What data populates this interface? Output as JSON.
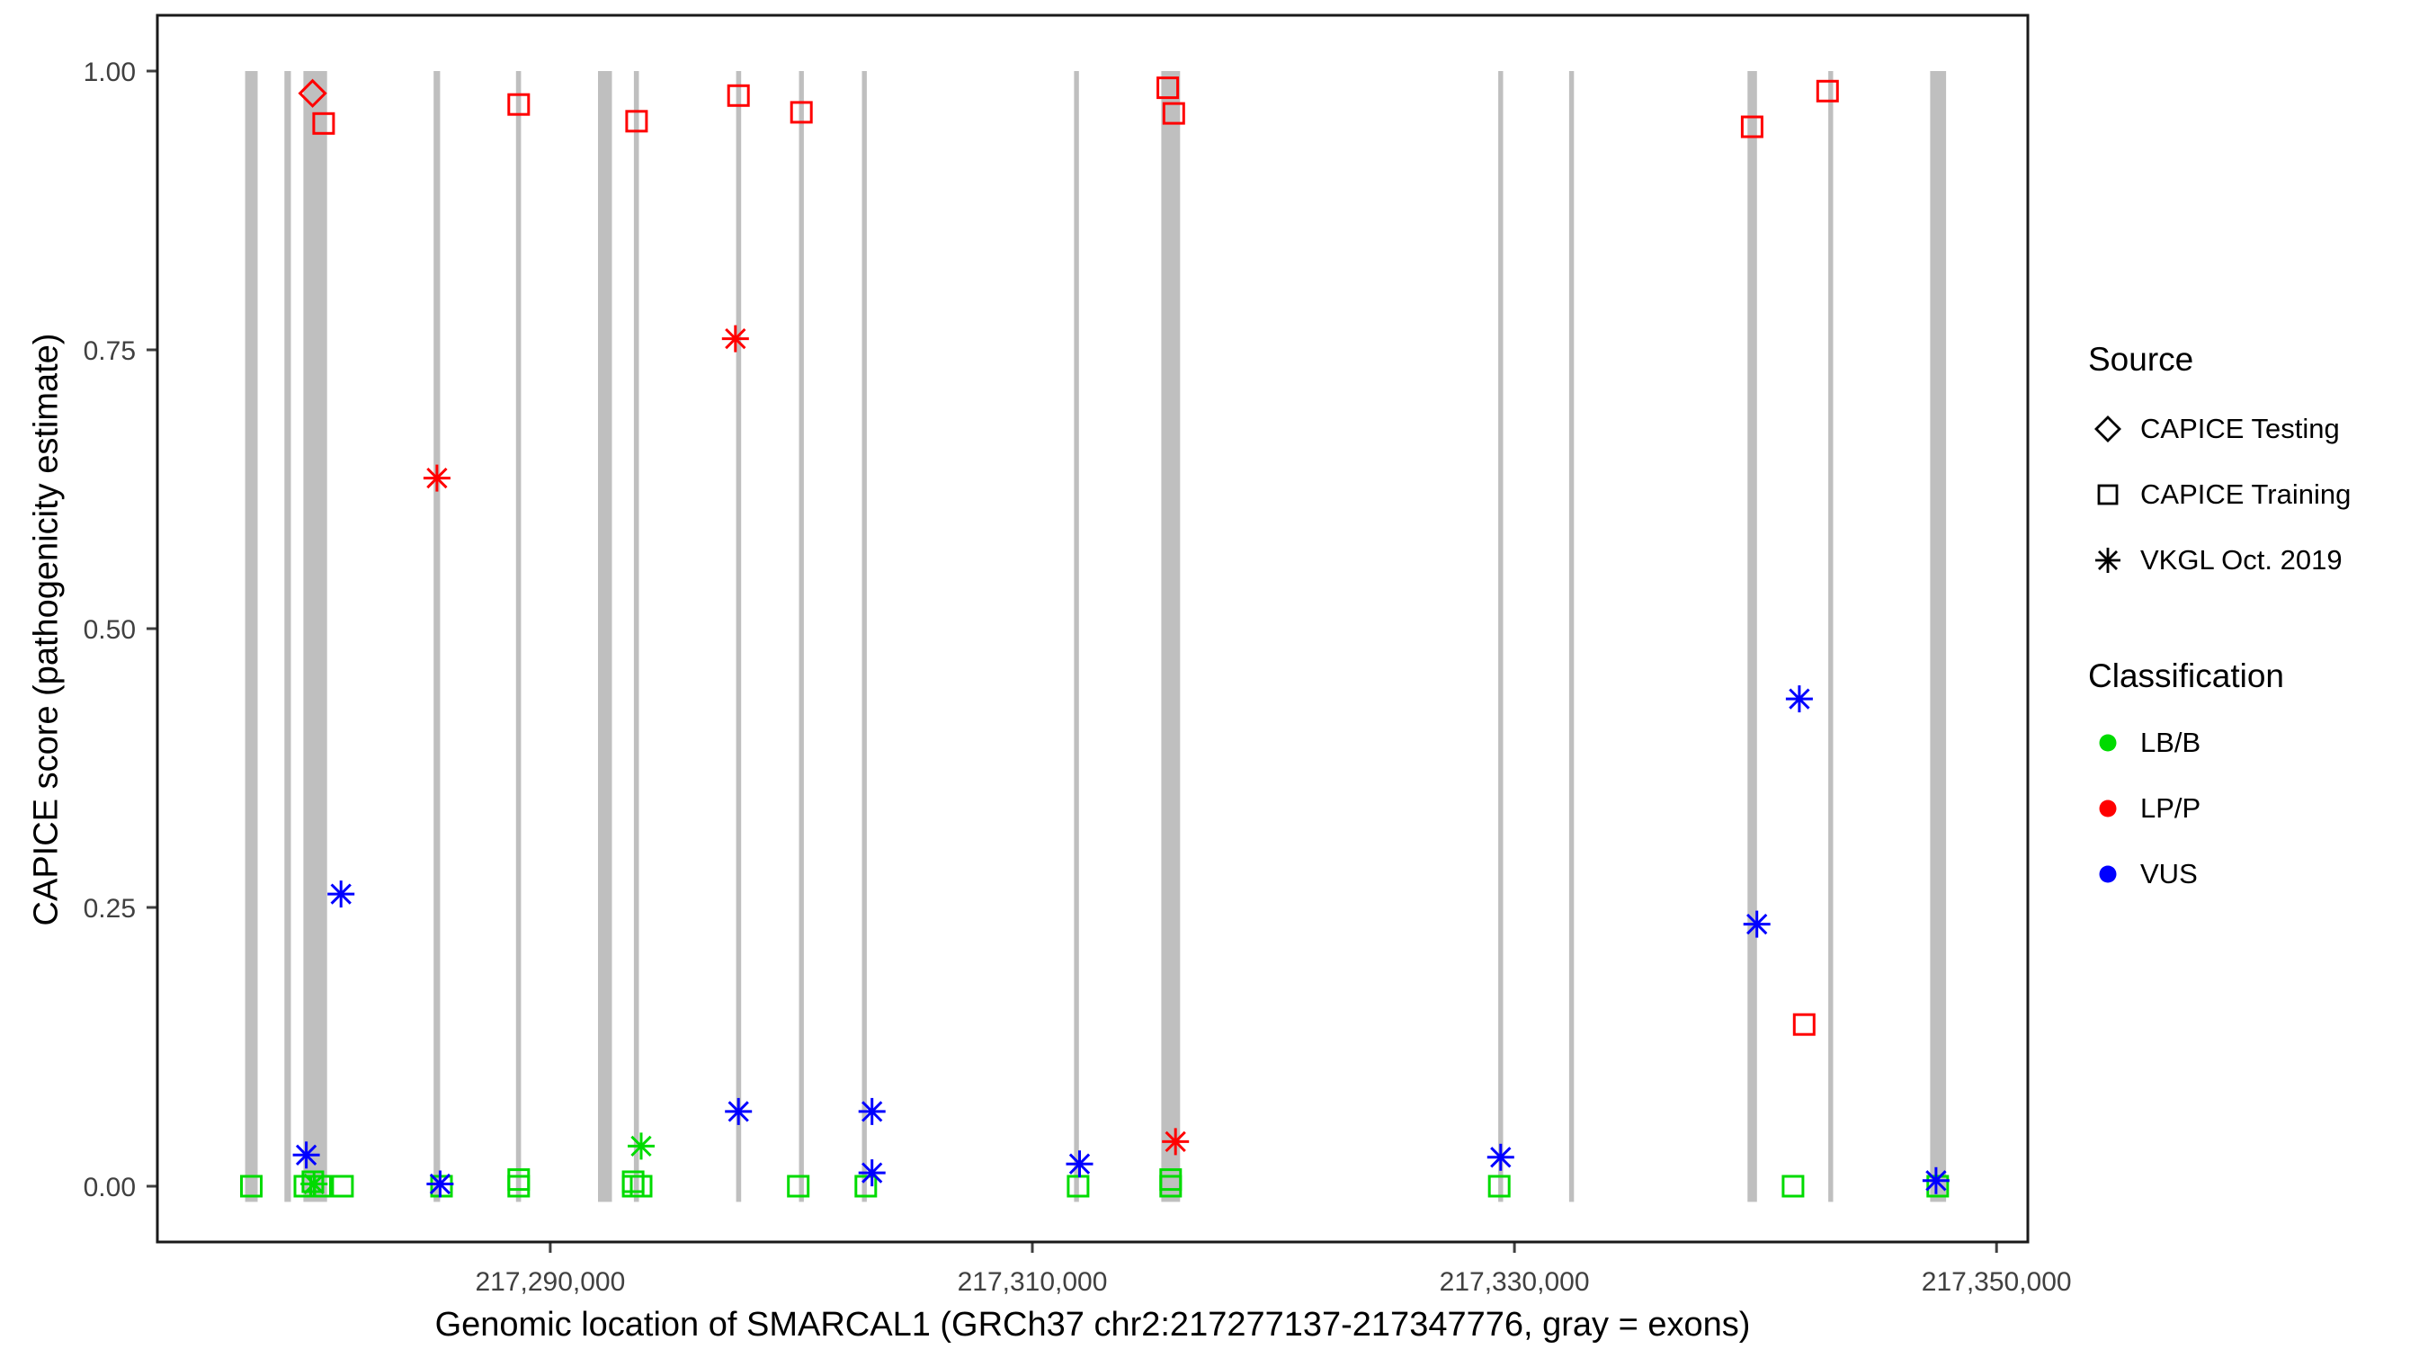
{
  "chart_data": {
    "type": "scatter",
    "title": "",
    "xlabel": "Genomic location of SMARCAL1 (GRCh37 chr2:217277137-217347776, gray = exons)",
    "ylabel": "CAPICE score (pathogenicity estimate)",
    "x_domain": [
      217273700,
      217351300
    ],
    "y_domain": [
      -0.05,
      1.05
    ],
    "grid": false,
    "legend_position": "right",
    "exon_color": "#BFBFBF",
    "x_ticks": [
      {
        "value": 217290000,
        "label": "217,290,000"
      },
      {
        "value": 217310000,
        "label": "217,310,000"
      },
      {
        "value": 217330000,
        "label": "217,330,000"
      },
      {
        "value": 217350000,
        "label": "217,350,000"
      }
    ],
    "y_ticks": [
      {
        "value": 0.0,
        "label": "0.00"
      },
      {
        "value": 0.25,
        "label": "0.25"
      },
      {
        "value": 0.5,
        "label": "0.50"
      },
      {
        "value": 0.75,
        "label": "0.75"
      },
      {
        "value": 1.0,
        "label": "1.00"
      }
    ],
    "exons": [
      {
        "start": 217277340,
        "end": 217277860
      },
      {
        "start": 217278970,
        "end": 217279240
      },
      {
        "start": 217279760,
        "end": 217280740
      },
      {
        "start": 217285160,
        "end": 217285430
      },
      {
        "start": 217288580,
        "end": 217288790
      },
      {
        "start": 217291980,
        "end": 217292560
      },
      {
        "start": 217293470,
        "end": 217293680
      },
      {
        "start": 217297710,
        "end": 217297920
      },
      {
        "start": 217300320,
        "end": 217300520
      },
      {
        "start": 217302930,
        "end": 217303130
      },
      {
        "start": 217311730,
        "end": 217311930
      },
      {
        "start": 217315350,
        "end": 217316130
      },
      {
        "start": 217329330,
        "end": 217329530
      },
      {
        "start": 217332270,
        "end": 217332470
      },
      {
        "start": 217339670,
        "end": 217340060
      },
      {
        "start": 217343020,
        "end": 217343220
      },
      {
        "start": 217347250,
        "end": 217347910
      }
    ],
    "series": [
      {
        "name": "LB/B",
        "color": "#00DB00",
        "points": [
          {
            "x": 217277600,
            "y": 0.0,
            "marker": "square"
          },
          {
            "x": 217279820,
            "y": 0.0,
            "marker": "square"
          },
          {
            "x": 217280150,
            "y": 0.004,
            "marker": "square"
          },
          {
            "x": 217280470,
            "y": 0.0,
            "marker": "square"
          },
          {
            "x": 217280200,
            "y": 0.002,
            "marker": "asterisk"
          },
          {
            "x": 217281380,
            "y": 0.0,
            "marker": "square"
          },
          {
            "x": 217285490,
            "y": 0.0,
            "marker": "square"
          },
          {
            "x": 217288690,
            "y": 0.006,
            "marker": "square"
          },
          {
            "x": 217288690,
            "y": 0.0,
            "marker": "square"
          },
          {
            "x": 217293440,
            "y": 0.004,
            "marker": "square"
          },
          {
            "x": 217293440,
            "y": 0.0,
            "marker": "square"
          },
          {
            "x": 217293770,
            "y": 0.0,
            "marker": "square"
          },
          {
            "x": 217293770,
            "y": 0.036,
            "marker": "asterisk"
          },
          {
            "x": 217300290,
            "y": 0.0,
            "marker": "square"
          },
          {
            "x": 217303090,
            "y": 0.0,
            "marker": "square"
          },
          {
            "x": 217311900,
            "y": 0.0,
            "marker": "square"
          },
          {
            "x": 217315740,
            "y": 0.006,
            "marker": "square"
          },
          {
            "x": 217315740,
            "y": 0.0,
            "marker": "square"
          },
          {
            "x": 217329370,
            "y": 0.0,
            "marker": "square"
          },
          {
            "x": 217341560,
            "y": 0.0,
            "marker": "square"
          },
          {
            "x": 217347560,
            "y": 0.0,
            "marker": "square"
          }
        ]
      },
      {
        "name": "LP/P",
        "color": "#FF0000",
        "points": [
          {
            "x": 217280140,
            "y": 0.98,
            "marker": "diamond"
          },
          {
            "x": 217280600,
            "y": 0.953,
            "marker": "square"
          },
          {
            "x": 217288690,
            "y": 0.97,
            "marker": "square"
          },
          {
            "x": 217293580,
            "y": 0.955,
            "marker": "square"
          },
          {
            "x": 217297810,
            "y": 0.978,
            "marker": "square"
          },
          {
            "x": 217300420,
            "y": 0.963,
            "marker": "square"
          },
          {
            "x": 217315620,
            "y": 0.985,
            "marker": "square"
          },
          {
            "x": 217315870,
            "y": 0.962,
            "marker": "square"
          },
          {
            "x": 217339860,
            "y": 0.95,
            "marker": "square"
          },
          {
            "x": 217342990,
            "y": 0.982,
            "marker": "square"
          },
          {
            "x": 217342020,
            "y": 0.145,
            "marker": "square"
          },
          {
            "x": 217285300,
            "y": 0.635,
            "marker": "asterisk"
          },
          {
            "x": 217297680,
            "y": 0.76,
            "marker": "asterisk"
          },
          {
            "x": 217315940,
            "y": 0.04,
            "marker": "asterisk"
          }
        ]
      },
      {
        "name": "VUS",
        "color": "#0000FF",
        "points": [
          {
            "x": 217281320,
            "y": 0.262,
            "marker": "asterisk"
          },
          {
            "x": 217279880,
            "y": 0.028,
            "marker": "asterisk"
          },
          {
            "x": 217285430,
            "y": 0.002,
            "marker": "asterisk"
          },
          {
            "x": 217297810,
            "y": 0.067,
            "marker": "asterisk"
          },
          {
            "x": 217303350,
            "y": 0.067,
            "marker": "asterisk"
          },
          {
            "x": 217303350,
            "y": 0.012,
            "marker": "asterisk"
          },
          {
            "x": 217311960,
            "y": 0.02,
            "marker": "asterisk"
          },
          {
            "x": 217329430,
            "y": 0.026,
            "marker": "asterisk"
          },
          {
            "x": 217340060,
            "y": 0.235,
            "marker": "asterisk"
          },
          {
            "x": 217341820,
            "y": 0.437,
            "marker": "asterisk"
          },
          {
            "x": 217347490,
            "y": 0.005,
            "marker": "asterisk"
          }
        ]
      }
    ]
  },
  "legend": {
    "source": {
      "title": "Source",
      "items": [
        {
          "label": "CAPICE Testing",
          "marker": "diamond"
        },
        {
          "label": "CAPICE Training",
          "marker": "square"
        },
        {
          "label": "VKGL Oct. 2019",
          "marker": "asterisk"
        }
      ]
    },
    "classification": {
      "title": "Classification",
      "items": [
        {
          "label": "LB/B",
          "color": "#00DB00"
        },
        {
          "label": "LP/P",
          "color": "#FF0000"
        },
        {
          "label": "VUS",
          "color": "#0000FF"
        }
      ]
    }
  }
}
